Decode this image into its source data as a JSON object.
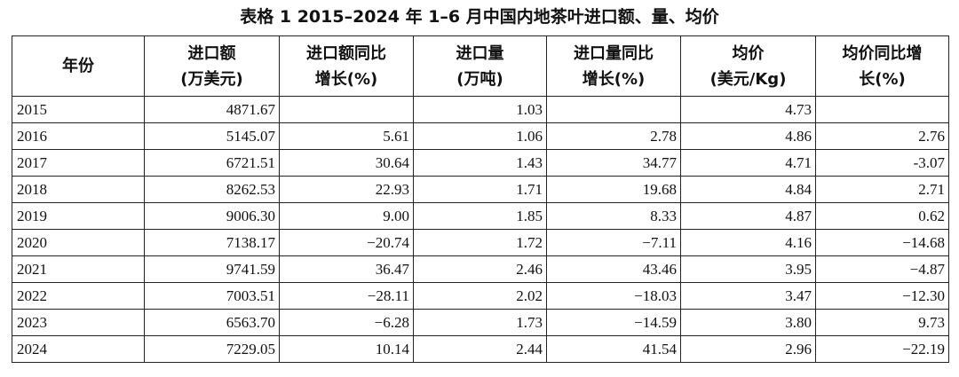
{
  "title": "表格 1 2015–2024 年 1–6 月中国内地茶叶进口额、量、均价",
  "headers": [
    "年份",
    "进口额\n(万美元)",
    "进口额同比\n增长(%)",
    "进口量\n(万吨)",
    "进口量同比\n增长(%)",
    "均价\n(美元/Kg)",
    "均价同比增\n长(%)"
  ],
  "rows": [
    [
      "2015",
      "4871.67",
      "",
      "1.03",
      "",
      "4.73",
      ""
    ],
    [
      "2016",
      "5145.07",
      "5.61",
      "1.06",
      "2.78",
      "4.86",
      "2.76"
    ],
    [
      "2017",
      "6721.51",
      "30.64",
      "1.43",
      "34.77",
      "4.71",
      "-3.07"
    ],
    [
      "2018",
      "8262.53",
      "22.93",
      "1.71",
      "19.68",
      "4.84",
      "2.71"
    ],
    [
      "2019",
      "9006.30",
      "9.00",
      "1.85",
      "8.33",
      "4.87",
      "0.62"
    ],
    [
      "2020",
      "7138.17",
      "−20.74",
      "1.72",
      "−7.11",
      "4.16",
      "−14.68"
    ],
    [
      "2021",
      "9741.59",
      "36.47",
      "2.46",
      "43.46",
      "3.95",
      "−4.87"
    ],
    [
      "2022",
      "7003.51",
      "−28.11",
      "2.02",
      "−18.03",
      "3.47",
      "−12.30"
    ],
    [
      "2023",
      "6563.70",
      "−6.28",
      "1.73",
      "−14.59",
      "3.80",
      "9.73"
    ],
    [
      "2024",
      "7229.05",
      "10.14",
      "2.44",
      "41.54",
      "2.96",
      "−22.19"
    ]
  ]
}
